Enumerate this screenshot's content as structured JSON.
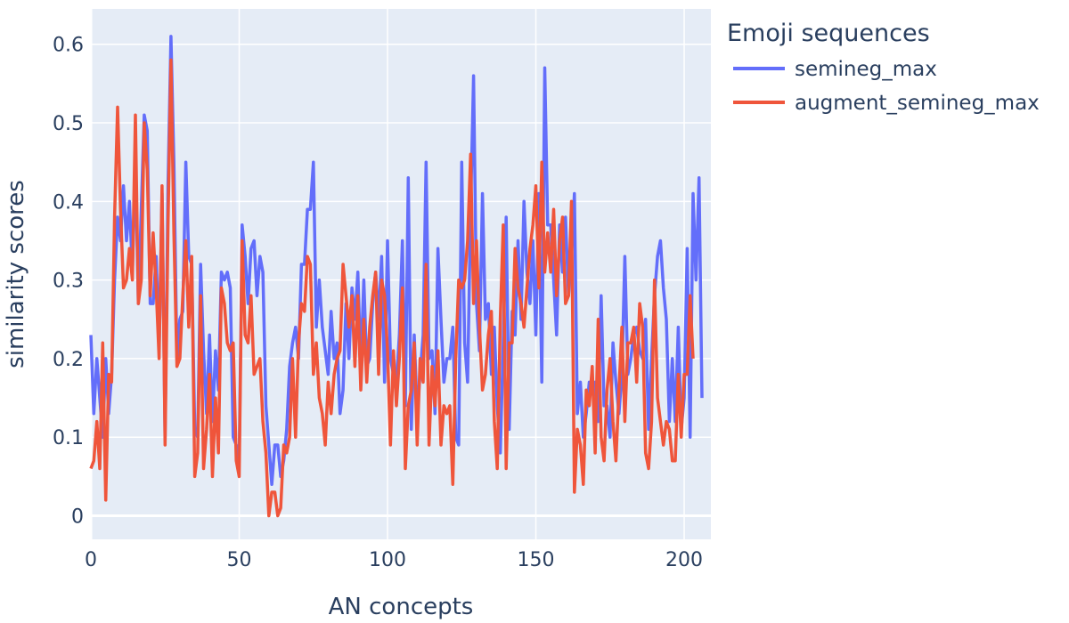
{
  "chart_data": {
    "type": "line",
    "title": "",
    "xlabel": "AN concepts",
    "ylabel": "similarity scores",
    "xlim": [
      0,
      209
    ],
    "ylim": [
      -0.03,
      0.645
    ],
    "xticks": [
      0,
      50,
      100,
      150,
      200
    ],
    "yticks": [
      0,
      0.1,
      0.2,
      0.3,
      0.4,
      0.5,
      0.6
    ],
    "xtick_labels": [
      "0",
      "50",
      "100",
      "150",
      "200"
    ],
    "ytick_labels": [
      "0",
      "0.1",
      "0.2",
      "0.3",
      "0.4",
      "0.5",
      "0.6"
    ],
    "grid": true,
    "legend": {
      "title": "Emoji sequences",
      "position": "top-right-outside"
    },
    "series": [
      {
        "name": "semineg_max",
        "color": "#636efa",
        "values": [
          0.23,
          0.13,
          0.2,
          0.15,
          0.1,
          0.2,
          0.13,
          0.18,
          0.3,
          0.38,
          0.35,
          0.42,
          0.35,
          0.4,
          0.31,
          0.45,
          0.27,
          0.39,
          0.51,
          0.49,
          0.27,
          0.27,
          0.33,
          0.21,
          0.41,
          0.1,
          0.42,
          0.61,
          0.45,
          0.2,
          0.25,
          0.26,
          0.45,
          0.33,
          0.32,
          0.11,
          0.1,
          0.32,
          0.21,
          0.13,
          0.23,
          0.12,
          0.21,
          0.16,
          0.31,
          0.3,
          0.31,
          0.29,
          0.1,
          0.09,
          0.07,
          0.37,
          0.33,
          0.27,
          0.34,
          0.35,
          0.28,
          0.33,
          0.31,
          0.14,
          0.09,
          0.04,
          0.09,
          0.09,
          0.05,
          0.07,
          0.11,
          0.19,
          0.22,
          0.24,
          0.2,
          0.32,
          0.32,
          0.39,
          0.39,
          0.45,
          0.24,
          0.3,
          0.24,
          0.21,
          0.18,
          0.26,
          0.2,
          0.22,
          0.13,
          0.16,
          0.27,
          0.2,
          0.29,
          0.25,
          0.31,
          0.19,
          0.3,
          0.19,
          0.2,
          0.27,
          0.31,
          0.25,
          0.33,
          0.17,
          0.35,
          0.2,
          0.18,
          0.17,
          0.23,
          0.35,
          0.14,
          0.43,
          0.11,
          0.23,
          0.13,
          0.18,
          0.23,
          0.45,
          0.2,
          0.21,
          0.13,
          0.34,
          0.25,
          0.17,
          0.2,
          0.2,
          0.24,
          0.1,
          0.09,
          0.45,
          0.22,
          0.17,
          0.39,
          0.56,
          0.27,
          0.21,
          0.41,
          0.25,
          0.27,
          0.18,
          0.24,
          0.14,
          0.08,
          0.22,
          0.38,
          0.11,
          0.26,
          0.23,
          0.35,
          0.25,
          0.4,
          0.31,
          0.27,
          0.35,
          0.23,
          0.41,
          0.17,
          0.57,
          0.37,
          0.37,
          0.3,
          0.23,
          0.37,
          0.31,
          0.38,
          0.28,
          0.33,
          0.41,
          0.13,
          0.17,
          0.1,
          0.13,
          0.17,
          0.16,
          0.17,
          0.12,
          0.28,
          0.14,
          0.14,
          0.1,
          0.22,
          0.17,
          0.13,
          0.18,
          0.33,
          0.18,
          0.2,
          0.23,
          0.24,
          0.21,
          0.2,
          0.25,
          0.11,
          0.2,
          0.28,
          0.33,
          0.35,
          0.29,
          0.25,
          0.12,
          0.2,
          0.12,
          0.24,
          0.11,
          0.15,
          0.34,
          0.1,
          0.41,
          0.3,
          0.43,
          0.15
        ]
      },
      {
        "name": "augment_semineg_max",
        "color": "#ef553b",
        "values": [
          0.06,
          0.07,
          0.12,
          0.06,
          0.22,
          0.02,
          0.18,
          0.17,
          0.38,
          0.52,
          0.39,
          0.29,
          0.3,
          0.34,
          0.3,
          0.51,
          0.27,
          0.3,
          0.5,
          0.44,
          0.28,
          0.36,
          0.29,
          0.2,
          0.42,
          0.09,
          0.37,
          0.58,
          0.36,
          0.19,
          0.2,
          0.28,
          0.35,
          0.24,
          0.33,
          0.05,
          0.08,
          0.28,
          0.06,
          0.11,
          0.18,
          0.05,
          0.15,
          0.08,
          0.29,
          0.27,
          0.22,
          0.21,
          0.22,
          0.07,
          0.05,
          0.35,
          0.23,
          0.22,
          0.28,
          0.18,
          0.19,
          0.2,
          0.12,
          0.08,
          0,
          0.03,
          0.03,
          0,
          0.01,
          0.09,
          0.08,
          0.1,
          0.2,
          0.1,
          0.22,
          0.27,
          0.26,
          0.33,
          0.32,
          0.18,
          0.22,
          0.15,
          0.13,
          0.09,
          0.17,
          0.13,
          0.18,
          0.2,
          0.21,
          0.32,
          0.28,
          0.24,
          0.28,
          0.19,
          0.28,
          0.16,
          0.25,
          0.17,
          0.24,
          0.28,
          0.31,
          0.18,
          0.3,
          0.28,
          0.21,
          0.09,
          0.21,
          0.14,
          0.2,
          0.29,
          0.06,
          0.14,
          0.16,
          0.22,
          0.09,
          0.2,
          0.17,
          0.32,
          0.09,
          0.19,
          0.14,
          0.21,
          0.09,
          0.14,
          0.13,
          0.14,
          0.04,
          0.2,
          0.3,
          0.29,
          0.3,
          0.35,
          0.46,
          0.27,
          0.35,
          0.24,
          0.16,
          0.18,
          0.23,
          0.26,
          0.12,
          0.06,
          0.25,
          0.37,
          0.06,
          0.22,
          0.22,
          0.34,
          0.29,
          0.27,
          0.24,
          0.29,
          0.34,
          0.37,
          0.42,
          0.29,
          0.45,
          0.31,
          0.36,
          0.31,
          0.39,
          0.28,
          0.35,
          0.38,
          0.27,
          0.28,
          0.4,
          0.03,
          0.11,
          0.09,
          0.04,
          0.16,
          0.14,
          0.19,
          0.08,
          0.25,
          0.1,
          0.07,
          0.16,
          0.2,
          0.12,
          0.07,
          0.16,
          0.24,
          0.12,
          0.22,
          0.22,
          0.24,
          0.17,
          0.27,
          0.24,
          0.08,
          0.06,
          0.12,
          0.3,
          0.15,
          0.12,
          0.09,
          0.12,
          0.11,
          0.07,
          0.07,
          0.18,
          0.1,
          0.18,
          0.18,
          0.28,
          0.2
        ]
      }
    ]
  }
}
